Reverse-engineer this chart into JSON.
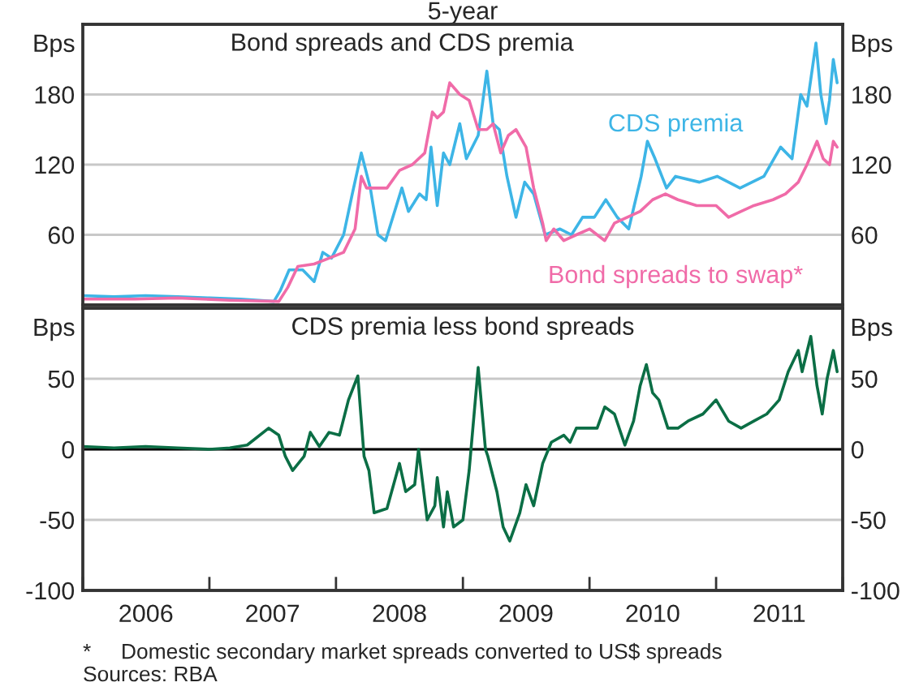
{
  "chart_data": [
    {
      "type": "line",
      "title": "5-year",
      "subtitle": "Bond spreads and CDS premia",
      "ylabel": "Bps",
      "y2label": "Bps",
      "xlim": [
        "2006-01-01",
        "2012-01-01"
      ],
      "ylim": [
        0,
        240
      ],
      "yticks": [
        60,
        120,
        180
      ],
      "y2lim": [
        0,
        240
      ],
      "y2ticks": [
        60,
        120,
        180
      ],
      "grid": "y",
      "legend": false,
      "tick_labels": "y",
      "series": [
        {
          "name": "CDS premia",
          "color": "#3db5e6",
          "x": [
            "2006-01-01",
            "2006-04-01",
            "2006-07-01",
            "2006-10-01",
            "2007-01-01",
            "2007-04-01",
            "2007-07-06",
            "2007-07-24",
            "2007-08-19",
            "2007-09-27",
            "2007-10-30",
            "2007-11-24",
            "2007-12-19",
            "2008-01-23",
            "2008-02-17",
            "2008-03-14",
            "2008-04-09",
            "2008-05-01",
            "2008-05-23",
            "2008-07-09",
            "2008-07-28",
            "2008-08-29",
            "2008-09-17",
            "2008-10-01",
            "2008-10-19",
            "2008-11-06",
            "2008-11-24",
            "2008-12-23",
            "2009-01-11",
            "2009-02-14",
            "2009-03-11",
            "2009-03-29",
            "2009-04-16",
            "2009-05-08",
            "2009-06-03",
            "2009-06-28",
            "2009-07-24",
            "2009-08-26",
            "2009-10-08",
            "2009-11-10",
            "2009-12-12",
            "2010-01-15",
            "2010-02-17",
            "2010-03-22",
            "2010-04-24",
            "2010-05-30",
            "2010-06-17",
            "2010-07-09",
            "2010-08-11",
            "2010-09-06",
            "2010-11-14",
            "2011-01-04",
            "2011-03-11",
            "2011-05-19",
            "2011-07-06",
            "2011-08-08",
            "2011-09-02",
            "2011-09-20",
            "2011-10-16",
            "2011-10-30",
            "2011-11-14",
            "2011-11-24",
            "2011-12-05",
            "2011-12-16"
          ],
          "values": [
            8,
            7,
            8,
            7,
            6,
            5,
            3,
            12,
            30,
            30,
            20,
            45,
            40,
            60,
            95,
            130,
            100,
            60,
            55,
            100,
            80,
            95,
            90,
            135,
            85,
            130,
            120,
            155,
            125,
            145,
            200,
            155,
            150,
            110,
            75,
            105,
            95,
            60,
            65,
            60,
            75,
            75,
            90,
            75,
            65,
            110,
            140,
            125,
            100,
            110,
            105,
            110,
            100,
            110,
            135,
            125,
            180,
            170,
            224,
            180,
            155,
            175,
            210,
            190
          ]
        },
        {
          "name": "Bond spreads to swap*",
          "color": "#f06ba8",
          "x": [
            "2006-01-01",
            "2006-06-01",
            "2006-10-01",
            "2007-03-01",
            "2007-07-20",
            "2007-08-15",
            "2007-09-13",
            "2007-10-30",
            "2007-12-12",
            "2008-01-23",
            "2008-02-25",
            "2008-03-14",
            "2008-03-29",
            "2008-04-20",
            "2008-05-27",
            "2008-07-02",
            "2008-08-08",
            "2008-09-13",
            "2008-10-05",
            "2008-10-19",
            "2008-11-06",
            "2008-11-24",
            "2008-12-23",
            "2009-01-19",
            "2009-02-14",
            "2009-03-11",
            "2009-03-29",
            "2009-04-20",
            "2009-05-12",
            "2009-06-03",
            "2009-07-02",
            "2009-07-24",
            "2009-08-19",
            "2009-08-29",
            "2009-09-20",
            "2009-10-19",
            "2009-11-24",
            "2010-01-01",
            "2010-02-14",
            "2010-03-14",
            "2010-04-20",
            "2010-05-27",
            "2010-07-02",
            "2010-08-08",
            "2010-09-13",
            "2010-11-06",
            "2011-01-01",
            "2011-02-06",
            "2011-03-14",
            "2011-04-20",
            "2011-06-14",
            "2011-07-20",
            "2011-08-26",
            "2011-09-20",
            "2011-10-19",
            "2011-11-06",
            "2011-11-24",
            "2011-12-05",
            "2011-12-16"
          ],
          "values": [
            5,
            5,
            6,
            4,
            3,
            15,
            33,
            35,
            40,
            45,
            65,
            110,
            100,
            100,
            100,
            115,
            120,
            130,
            165,
            160,
            165,
            190,
            180,
            175,
            150,
            150,
            155,
            130,
            145,
            150,
            135,
            100,
            70,
            55,
            65,
            55,
            60,
            65,
            55,
            70,
            75,
            80,
            90,
            95,
            90,
            85,
            85,
            75,
            80,
            85,
            90,
            95,
            105,
            120,
            140,
            125,
            120,
            140,
            135
          ]
        }
      ]
    },
    {
      "type": "line",
      "title": "CDS premia less bond spreads",
      "ylabel": "Bps",
      "y2label": "Bps",
      "xlim": [
        "2006-01-01",
        "2012-01-01"
      ],
      "xticks": [
        {
          "value": "2006-01-01",
          "label": null
        },
        {
          "value": "2006-07-02",
          "label": "2006"
        },
        {
          "value": "2007-01-01",
          "label": null
        },
        {
          "value": "2007-07-02",
          "label": "2007"
        },
        {
          "value": "2008-01-01",
          "label": null
        },
        {
          "value": "2008-07-02",
          "label": "2008"
        },
        {
          "value": "2009-01-01",
          "label": null
        },
        {
          "value": "2009-07-02",
          "label": "2009"
        },
        {
          "value": "2010-01-01",
          "label": null
        },
        {
          "value": "2010-07-02",
          "label": "2010"
        },
        {
          "value": "2011-01-01",
          "label": null
        },
        {
          "value": "2011-07-02",
          "label": "2011"
        },
        {
          "value": "2012-01-01",
          "label": null
        }
      ],
      "ylim": [
        -100,
        100
      ],
      "yticks": [
        -100,
        -50,
        0,
        50
      ],
      "y2lim": [
        -100,
        100
      ],
      "y2ticks": [
        -100,
        -50,
        0,
        50
      ],
      "grid": "y",
      "legend": false,
      "ref_lines": [
        {
          "axis": "y",
          "value": 0,
          "color": "#000000"
        }
      ],
      "annotations": [
        "*     Domestic secondary market spreads converted to US$ spreads",
        "Sources: RBA"
      ],
      "series": [
        {
          "color": "#0b6e45",
          "x": [
            "2006-01-01",
            "2006-04-01",
            "2006-07-01",
            "2006-10-01",
            "2007-01-01",
            "2007-03-01",
            "2007-04-20",
            "2007-06-21",
            "2007-07-20",
            "2007-08-08",
            "2007-08-29",
            "2007-10-01",
            "2007-10-19",
            "2007-11-14",
            "2007-12-12",
            "2008-01-11",
            "2008-02-06",
            "2008-03-04",
            "2008-03-22",
            "2008-04-05",
            "2008-04-20",
            "2008-05-27",
            "2008-07-02",
            "2008-07-20",
            "2008-08-15",
            "2008-08-26",
            "2008-09-20",
            "2008-10-12",
            "2008-10-19",
            "2008-11-06",
            "2008-11-17",
            "2008-12-05",
            "2009-01-01",
            "2009-01-19",
            "2009-02-14",
            "2009-03-07",
            "2009-03-14",
            "2009-04-09",
            "2009-04-27",
            "2009-05-16",
            "2009-06-14",
            "2009-07-02",
            "2009-07-24",
            "2009-08-19",
            "2009-09-13",
            "2009-10-19",
            "2009-11-06",
            "2009-11-24",
            "2010-01-01",
            "2010-01-23",
            "2010-02-14",
            "2010-03-14",
            "2010-04-13",
            "2010-05-08",
            "2010-05-27",
            "2010-06-14",
            "2010-07-02",
            "2010-07-20",
            "2010-08-15",
            "2010-09-13",
            "2010-10-12",
            "2010-11-24",
            "2011-01-01",
            "2011-02-06",
            "2011-03-14",
            "2011-04-20",
            "2011-05-27",
            "2011-07-02",
            "2011-07-28",
            "2011-08-26",
            "2011-09-06",
            "2011-10-01",
            "2011-10-19",
            "2011-11-03",
            "2011-11-17",
            "2011-12-05",
            "2011-12-16"
          ],
          "values": [
            2,
            1,
            2,
            1,
            0,
            1,
            3,
            15,
            10,
            -5,
            -15,
            -5,
            12,
            2,
            12,
            10,
            35,
            52,
            -5,
            -15,
            -45,
            -42,
            -10,
            -30,
            -25,
            0,
            -50,
            -40,
            -20,
            -55,
            -30,
            -55,
            -50,
            -15,
            58,
            0,
            -5,
            -30,
            -55,
            -65,
            -45,
            -25,
            -40,
            -10,
            5,
            10,
            5,
            15,
            15,
            15,
            30,
            25,
            3,
            20,
            45,
            60,
            40,
            35,
            15,
            15,
            20,
            25,
            35,
            20,
            15,
            20,
            25,
            35,
            55,
            70,
            55,
            80,
            45,
            25,
            50,
            70,
            55
          ]
        }
      ]
    }
  ]
}
